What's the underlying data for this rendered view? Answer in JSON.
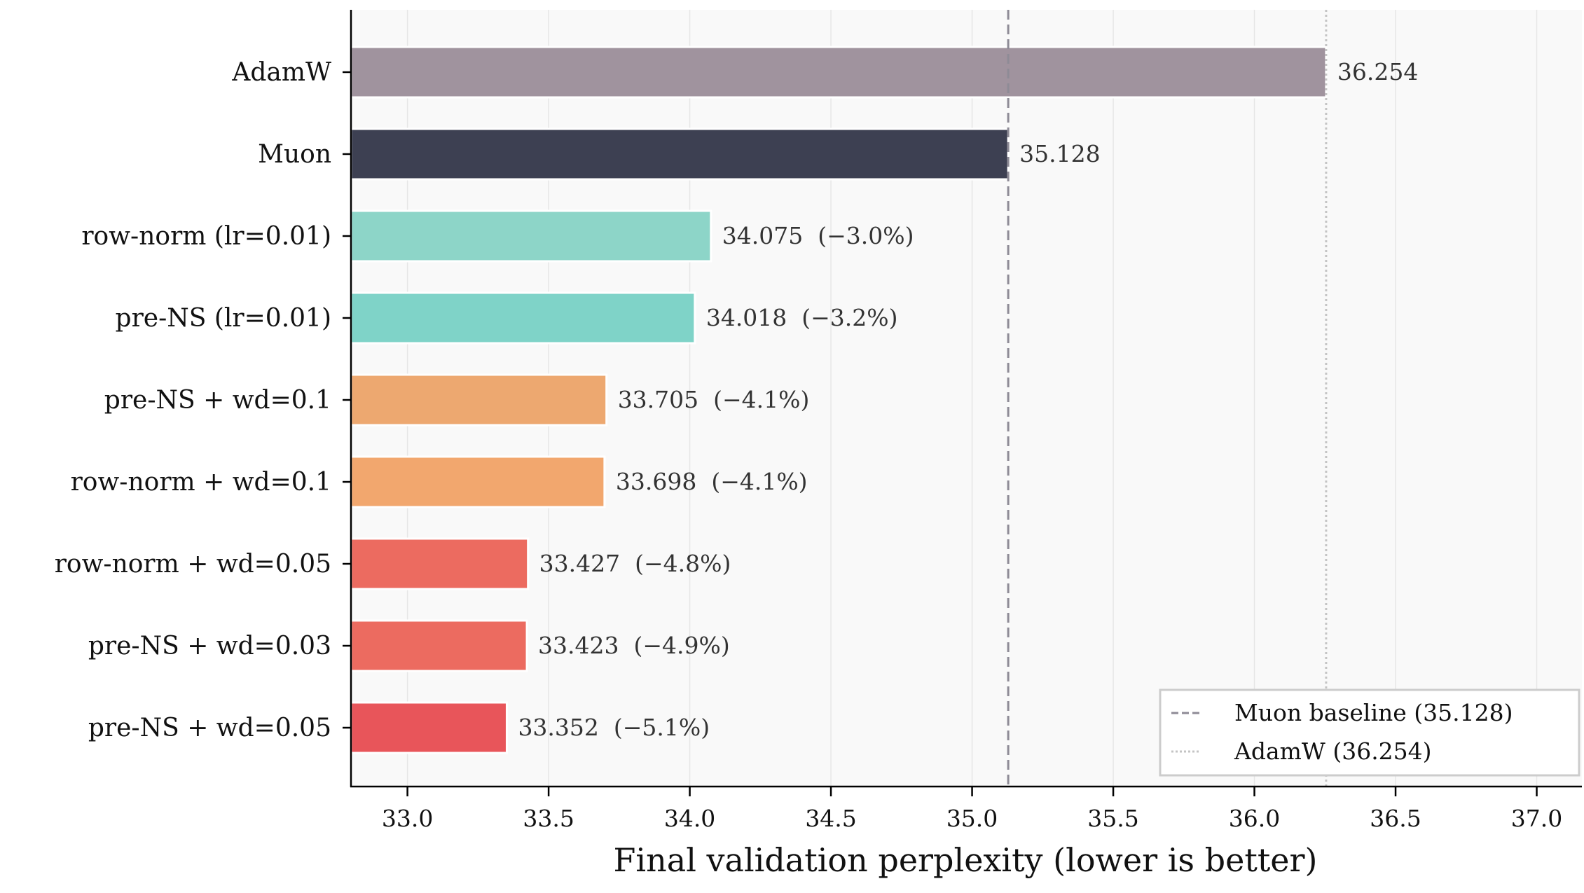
{
  "chart_data": {
    "type": "bar",
    "orientation": "horizontal",
    "categories": [
      "AdamW",
      "Muon",
      "row-norm (lr=0.01)",
      "pre-NS (lr=0.01)",
      "pre-NS + wd=0.1",
      "row-norm + wd=0.1",
      "row-norm + wd=0.05",
      "pre-NS + wd=0.03",
      "pre-NS + wd=0.05"
    ],
    "values": [
      36.254,
      35.128,
      34.075,
      34.018,
      33.705,
      33.698,
      33.427,
      33.423,
      33.352
    ],
    "data_labels": [
      "36.254",
      "35.128",
      "34.075  (−3.0%)",
      "34.018  (−3.2%)",
      "33.705  (−4.1%)",
      "33.698  (−4.1%)",
      "33.427  (−4.8%)",
      "33.423  (−4.9%)",
      "33.352  (−5.1%)"
    ],
    "colors": [
      "#a0939e",
      "#3d4052",
      "#8dd5c8",
      "#7fd3c8",
      "#eda870",
      "#f2a76e",
      "#ec6b60",
      "#ec6b60",
      "#e8555a"
    ],
    "xlabel": "Final validation perplexity (lower is better)",
    "ylabel": "",
    "xlim": [
      32.8,
      37.16
    ],
    "xticks": [
      "33.0",
      "33.5",
      "34.0",
      "34.5",
      "35.0",
      "35.5",
      "36.0",
      "36.5",
      "37.0"
    ],
    "grid": "vertical",
    "reference_lines": [
      {
        "value": 35.128,
        "style": "dashed",
        "color": "#8e8b96",
        "label": "Muon baseline (35.128)"
      },
      {
        "value": 36.254,
        "style": "dotted",
        "color": "#c4c4c4",
        "label": "AdamW (36.254)"
      }
    ],
    "legend": "bottom-right"
  }
}
